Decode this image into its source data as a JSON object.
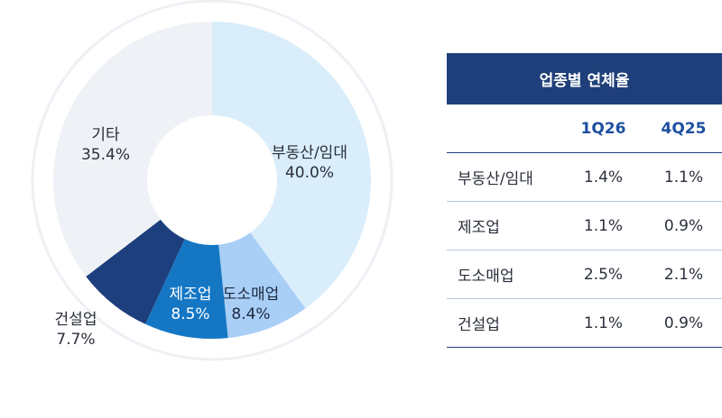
{
  "chart_data": {
    "type": "pie",
    "categories": [
      "부동산/임대",
      "도소매업",
      "제조업",
      "건설업",
      "기타"
    ],
    "values": [
      40.0,
      8.4,
      8.5,
      7.7,
      35.4
    ],
    "labels": [
      "40.0%",
      "8.4%",
      "8.5%",
      "7.7%",
      "35.4%"
    ],
    "colors": [
      "#d9edfb",
      "#a9cff7",
      "#1577c4",
      "#1d3f7e",
      "#eef1f5"
    ]
  },
  "table": {
    "title": "업종별 연체율",
    "columns": [
      "1Q26",
      "4Q25"
    ],
    "rows": [
      {
        "category": "부동산/임대",
        "values": [
          "1.4%",
          "1.1%"
        ]
      },
      {
        "category": "제조업",
        "values": [
          "1.1%",
          "0.9%"
        ]
      },
      {
        "category": "도소매업",
        "values": [
          "2.5%",
          "2.1%"
        ]
      },
      {
        "category": "건설업",
        "values": [
          "1.1%",
          "0.9%"
        ]
      }
    ]
  }
}
